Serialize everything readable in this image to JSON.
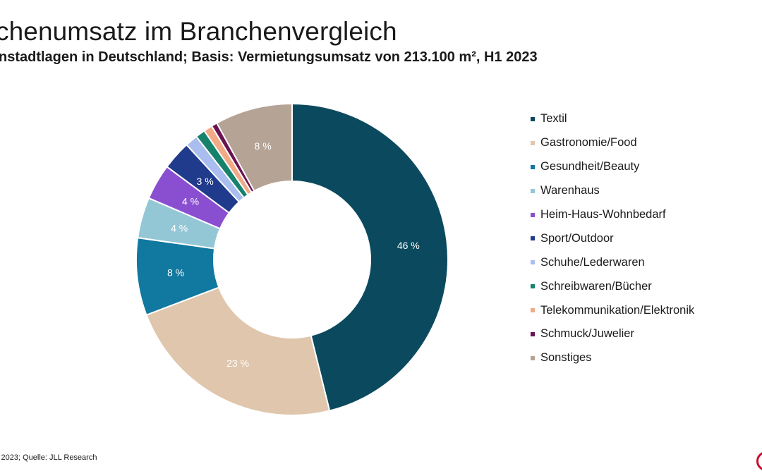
{
  "chart_data": {
    "type": "pie",
    "title": "chenumsatz im Branchenvergleich",
    "subtitle": "nstadtlagen in Deutschland; Basis: Vermietungsumsatz von 213.100 m², H1 2023",
    "style": "donut",
    "legend_position": "right",
    "slices": [
      {
        "name": "Textil",
        "value": 46,
        "label": "46 %",
        "color": "#0b4a5e"
      },
      {
        "name": "Gastronomie/Food",
        "value": 23,
        "label": "23 %",
        "color": "#dfc6ad"
      },
      {
        "name": "Gesundheit/Beauty",
        "value": 8,
        "label": "8 %",
        "color": "#11789f"
      },
      {
        "name": "Warenhaus",
        "value": 4.2,
        "label": "4 %",
        "color": "#94c7d6"
      },
      {
        "name": "Heim-Haus-Wohnbedarf",
        "value": 3.7,
        "label": "4 %",
        "color": "#8a4fd1"
      },
      {
        "name": "Sport/Outdoor",
        "value": 3,
        "label": "3 %",
        "color": "#203a8c"
      },
      {
        "name": "Schuhe/Lederwaren",
        "value": 1.3,
        "label": "",
        "color": "#a9bdee"
      },
      {
        "name": "Schreibwaren/Bücher",
        "value": 1,
        "label": "",
        "color": "#16826c"
      },
      {
        "name": "Telekommunikation/Elektronik",
        "value": 0.9,
        "label": "",
        "color": "#f2aa86"
      },
      {
        "name": "Schmuck/Juwelier",
        "value": 0.6,
        "label": "",
        "color": "#6b1251"
      },
      {
        "name": "Sonstiges",
        "value": 8,
        "label": "8 %",
        "color": "#b5a395"
      }
    ]
  },
  "footer": {
    "source": "i 2023; Quelle: JLL Research"
  }
}
